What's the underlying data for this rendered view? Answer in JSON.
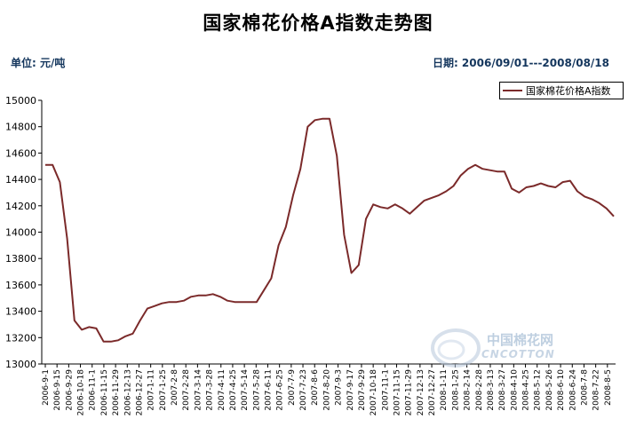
{
  "page": {
    "title": "国家棉花价格A指数走势图",
    "unit_label": "单位: 元/吨",
    "date_range": "日期: 2006/09/01---2008/08/18",
    "watermark_main": "中国棉花网",
    "watermark_sub": "CNCOTTON"
  },
  "colors": {
    "series": "#7b2a2a",
    "text": "#14365d",
    "axis": "#000000"
  },
  "chart_data": {
    "type": "line",
    "title": "国家棉花价格A指数走势图",
    "ylim": [
      13000,
      15000
    ],
    "y_ticks": [
      13000,
      13200,
      13400,
      13600,
      13800,
      14000,
      14200,
      14400,
      14600,
      14800,
      15000
    ],
    "x_ticks": [
      "2006-9-1",
      "2006-9-15",
      "2006-9-29",
      "2006-10-18",
      "2006-11-1",
      "2006-11-15",
      "2006-11-29",
      "2006-12-13",
      "2006-12-27",
      "2007-1-11",
      "2007-1-25",
      "2007-2-8",
      "2007-2-28",
      "2007-3-14",
      "2007-3-28",
      "2007-4-11",
      "2007-4-25",
      "2007-5-14",
      "2007-5-28",
      "2007-6-11",
      "2007-6-25",
      "2007-7-9",
      "2007-7-23",
      "2007-8-6",
      "2007-8-20",
      "2007-9-3",
      "2007-9-17",
      "2007-9-29",
      "2007-10-18",
      "2007-11-1",
      "2007-11-15",
      "2007-11-29",
      "2007-12-13",
      "2007-12-27",
      "2008-1-11",
      "2008-1-25",
      "2008-2-14",
      "2008-2-28",
      "2008-3-13",
      "2008-3-27",
      "2008-4-10",
      "2008-4-25",
      "2008-5-12",
      "2008-5-26",
      "2008-6-10",
      "2008-6-24",
      "2008-7-8",
      "2008-7-22",
      "2008-8-5"
    ],
    "legend_position": "top-right",
    "grid": false,
    "series": [
      {
        "name": "国家棉花价格A指数",
        "values": [
          14510,
          14510,
          14380,
          13950,
          13330,
          13260,
          13280,
          13270,
          13170,
          13170,
          13180,
          13210,
          13230,
          13330,
          13420,
          13440,
          13460,
          13470,
          13470,
          13480,
          13510,
          13520,
          13520,
          13530,
          13510,
          13480,
          13470,
          13470,
          13470,
          13470,
          13560,
          13650,
          13900,
          14040,
          14280,
          14480,
          14800,
          14850,
          14860,
          14860,
          14580,
          13980,
          13690,
          13750,
          14100,
          14210,
          14190,
          14180,
          14210,
          14180,
          14140,
          14190,
          14240,
          14260,
          14280,
          14310,
          14350,
          14430,
          14480,
          14510,
          14480,
          14470,
          14460,
          14460,
          14330,
          14300,
          14340,
          14350,
          14370,
          14350,
          14340,
          14380,
          14390,
          14310,
          14270,
          14250,
          14220,
          14180,
          14120
        ]
      }
    ]
  }
}
